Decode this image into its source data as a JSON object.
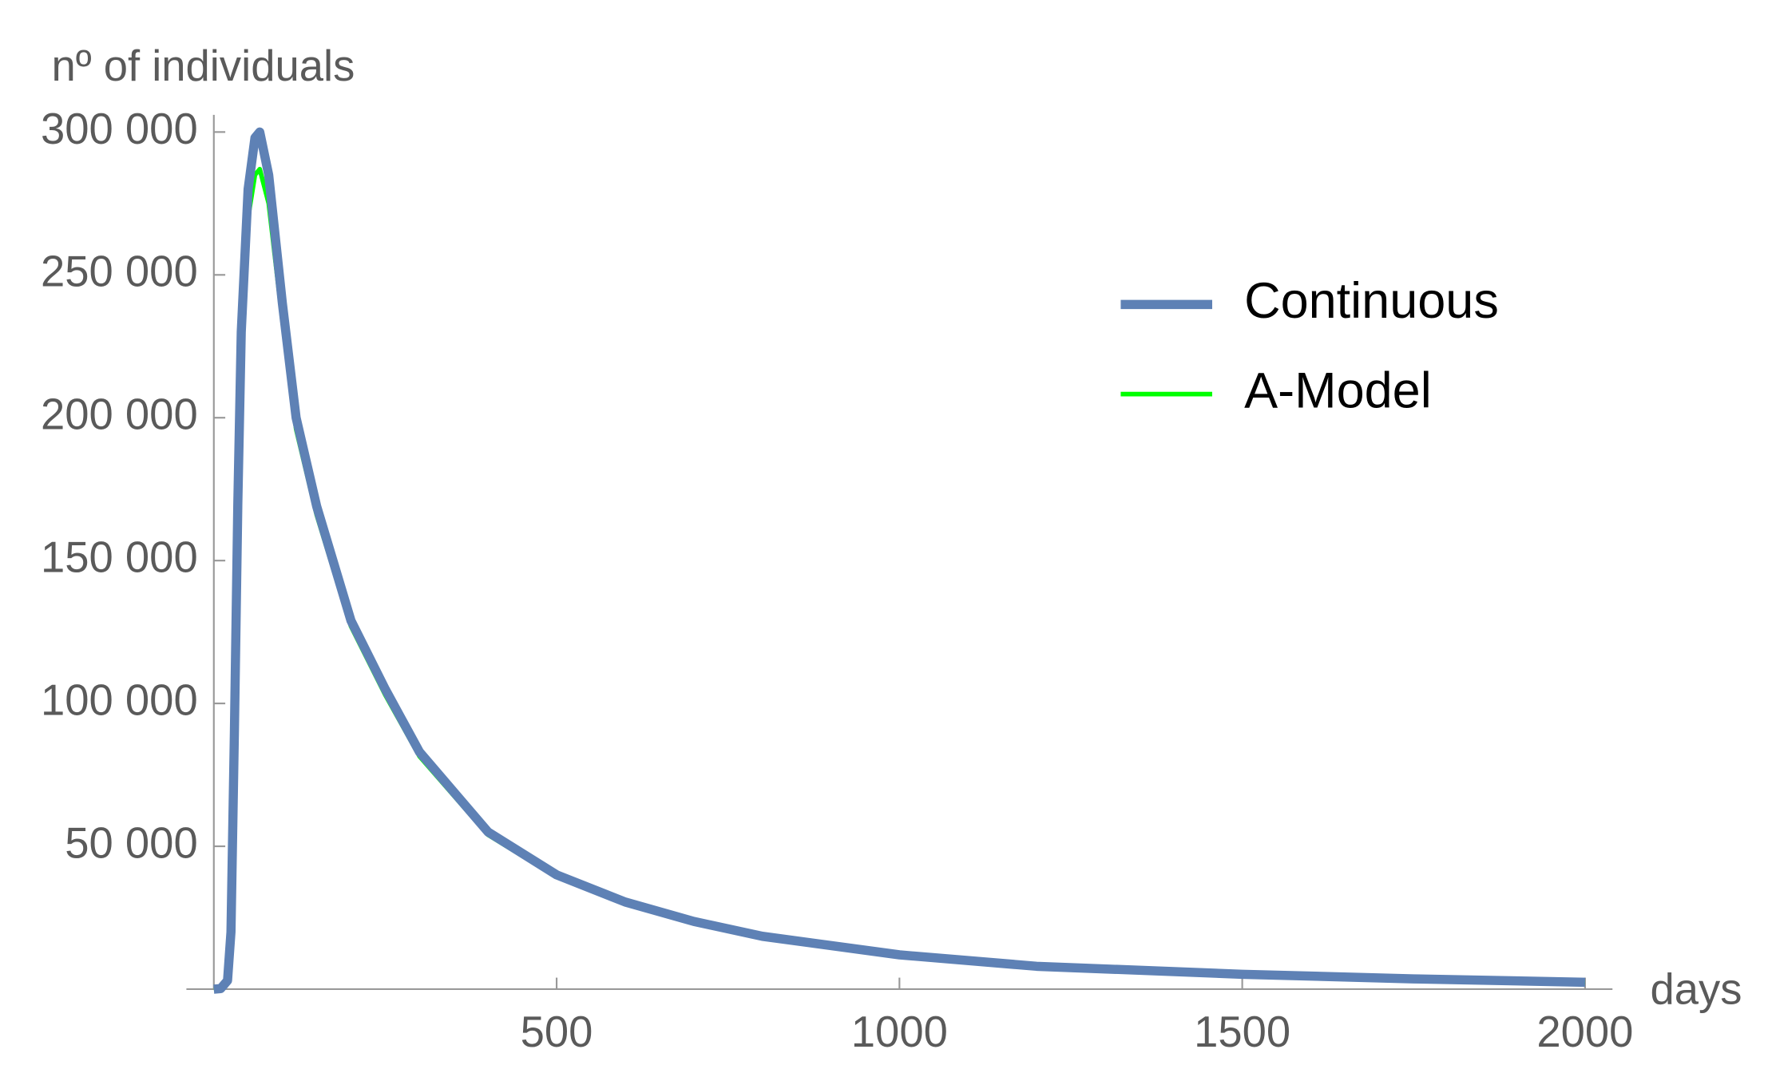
{
  "chart_data": {
    "type": "line",
    "y_label": "nº of individuals",
    "x_label": "days",
    "x": [
      0,
      10,
      20,
      25,
      30,
      35,
      40,
      50,
      60,
      67,
      80,
      100,
      120,
      150,
      200,
      250,
      300,
      400,
      500,
      600,
      700,
      800,
      1000,
      1200,
      1500,
      1750,
      2000
    ],
    "series": [
      {
        "name": "Continuous",
        "color": "#5e81b5",
        "values": [
          0,
          200,
          3000,
          20000,
          90000,
          170000,
          230000,
          280000,
          298000,
          300000,
          285000,
          240000,
          200000,
          169000,
          129000,
          105000,
          83000,
          55000,
          40000,
          30500,
          23700,
          18500,
          12000,
          8000,
          5200,
          3600,
          2400
        ]
      },
      {
        "name": "A-Model",
        "color": "#00ff00",
        "values": [
          0,
          200,
          2900,
          19500,
          88000,
          165000,
          222000,
          270000,
          285000,
          287000,
          275000,
          234000,
          196000,
          166000,
          127000,
          103000,
          81500,
          54000,
          39300,
          30000,
          23300,
          18200,
          11800,
          7900,
          5100,
          3550,
          2380
        ]
      }
    ],
    "xlim": [
      -40,
      2040
    ],
    "ylim": [
      0,
      306000
    ],
    "xticks": [
      500,
      1000,
      1500,
      2000
    ],
    "yticks": [
      {
        "value": 50000,
        "label": "50 000"
      },
      {
        "value": 100000,
        "label": "100 000"
      },
      {
        "value": 150000,
        "label": "150 000"
      },
      {
        "value": 200000,
        "label": "200 000"
      },
      {
        "value": 250000,
        "label": "250 000"
      },
      {
        "value": 300000,
        "label": "300 000"
      }
    ],
    "legend": "upper right"
  }
}
